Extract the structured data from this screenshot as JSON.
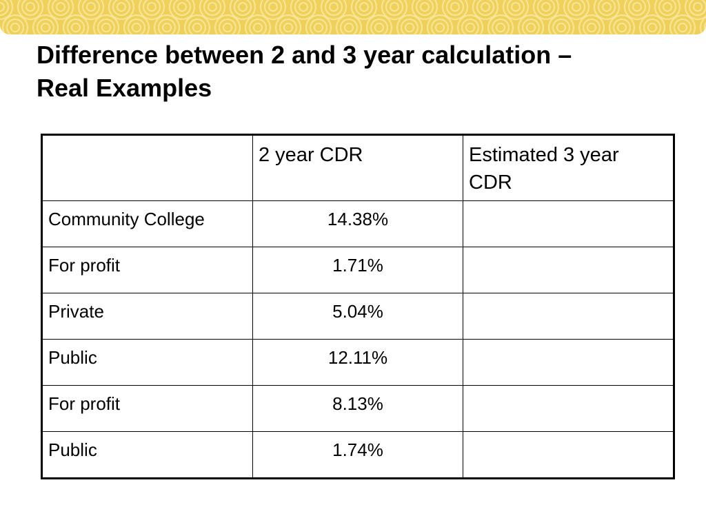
{
  "slide": {
    "title_line1": "Difference between 2 and 3 year calculation –",
    "title_line2": "Real Examples"
  },
  "table": {
    "headers": [
      "",
      "2 year CDR",
      "Estimated 3 year CDR"
    ],
    "rows": [
      {
        "label": "Community College",
        "cdr2": "14.38%",
        "cdr3": ""
      },
      {
        "label": "For profit",
        "cdr2": "1.71%",
        "cdr3": ""
      },
      {
        "label": "Private",
        "cdr2": "5.04%",
        "cdr3": ""
      },
      {
        "label": "Public",
        "cdr2": "12.11%",
        "cdr3": ""
      },
      {
        "label": "For profit",
        "cdr2": "8.13%",
        "cdr3": ""
      },
      {
        "label": "Public",
        "cdr2": "1.74%",
        "cdr3": ""
      }
    ]
  },
  "colors": {
    "banner_base": "#efd05a",
    "banner_swirl": "#f8e7a0"
  }
}
